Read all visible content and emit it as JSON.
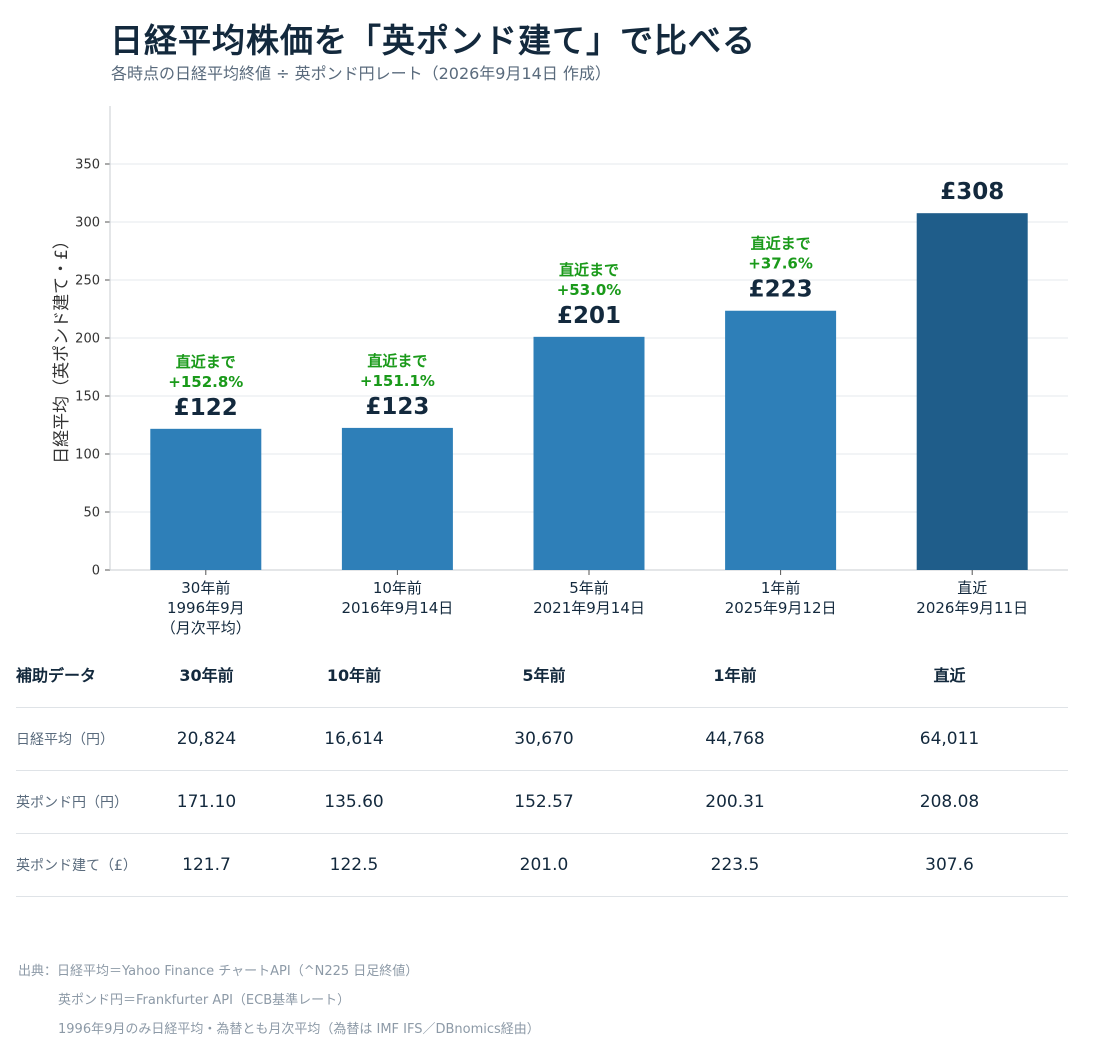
{
  "title": "日経平均株価を「英ポンド建て」で比べる",
  "subtitle": "各時点の日経平均終値 ÷ 英ポンド円レート（2026年9月14日 作成）",
  "chart_data": {
    "type": "bar",
    "ylabel": "日経平均（英ポンド建て・£）",
    "ylim": [
      0,
      400
    ],
    "yticks": [
      0,
      50,
      100,
      150,
      200,
      250,
      300,
      350
    ],
    "grid": true,
    "categories": [
      [
        "30年前",
        "1996年9月",
        "（月次平均）"
      ],
      [
        "10年前",
        "2016年9月14日"
      ],
      [
        "5年前",
        "2021年9月14日"
      ],
      [
        "1年前",
        "2025年9月12日"
      ],
      [
        "直近",
        "2026年9月11日"
      ]
    ],
    "values": [
      121.7,
      122.5,
      201.0,
      223.5,
      307.6
    ],
    "value_labels": [
      "£122",
      "£123",
      "£201",
      "£223",
      "£308"
    ],
    "change_labels": [
      [
        "直近まで",
        "+152.8%"
      ],
      [
        "直近まで",
        "+151.1%"
      ],
      [
        "直近まで",
        "+53.0%"
      ],
      [
        "直近まで",
        "+37.6%"
      ],
      null
    ],
    "colors": {
      "bar": "#2e7fb8",
      "latest_bar": "#1f5d8a",
      "change_text": "#1a9a1a",
      "value_text": "#13293d",
      "grid": "#e6e9ec"
    }
  },
  "table": {
    "header_label": "補助データ",
    "columns": [
      "30年前",
      "10年前",
      "5年前",
      "1年前",
      "直近"
    ],
    "rows": [
      {
        "label": "日経平均（円）",
        "values": [
          "20,824",
          "16,614",
          "30,670",
          "44,768",
          "64,011"
        ]
      },
      {
        "label": "英ポンド円（円）",
        "values": [
          "171.10",
          "135.60",
          "152.57",
          "200.31",
          "208.08"
        ]
      },
      {
        "label": "英ポンド建て（£）",
        "values": [
          "121.7",
          "122.5",
          "201.0",
          "223.5",
          "307.6"
        ]
      }
    ]
  },
  "source": [
    "出典：日経平均＝Yahoo Finance チャートAPI（^N225 日足終値）",
    "英ポンド円＝Frankfurter API（ECB基準レート）",
    "1996年9月のみ日経平均・為替とも月次平均（為替は IMF IFS／DBnomics経由）"
  ]
}
